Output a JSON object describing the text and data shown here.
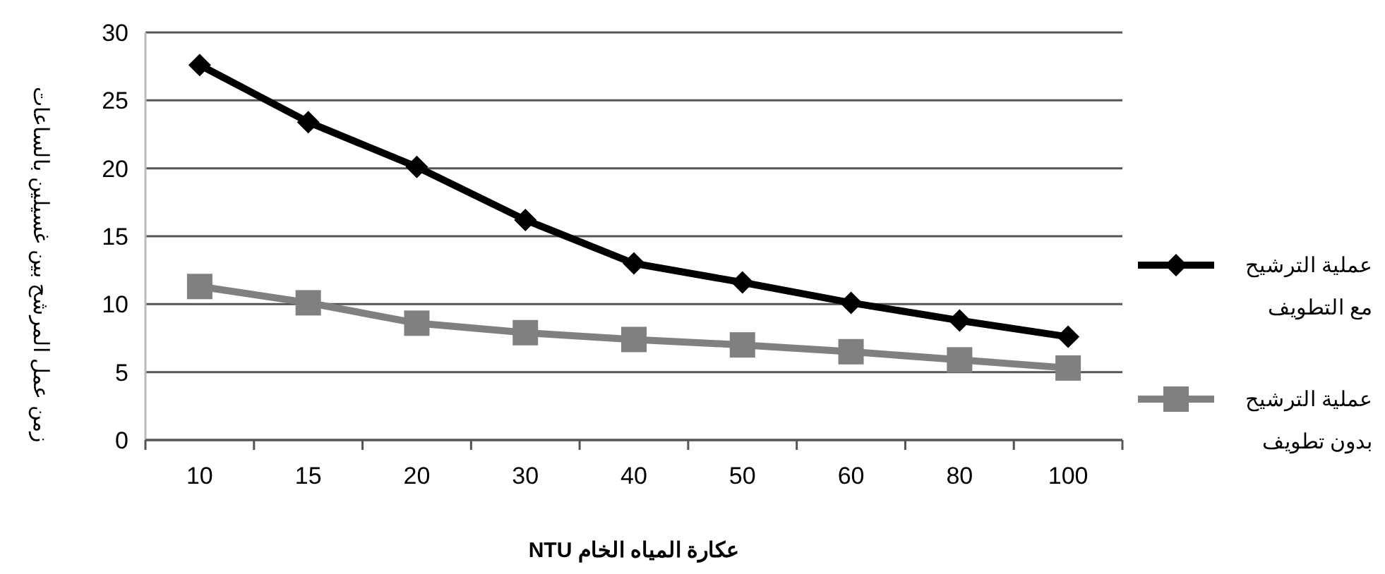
{
  "chart_data": {
    "type": "line",
    "xlabel": "عكارة المياه الخام NTU",
    "ylabel": "زمن عمل المرشح بين غسيلين بالساعات",
    "categories": [
      "10",
      "15",
      "20",
      "30",
      "40",
      "50",
      "60",
      "80",
      "100"
    ],
    "series": [
      {
        "name": "عملية الترشيح مع التطويف",
        "color": "#000000",
        "marker": "diamond",
        "values": [
          27.6,
          23.4,
          20.1,
          16.2,
          13.0,
          11.6,
          10.1,
          8.8,
          7.6
        ]
      },
      {
        "name": "عملية الترشيح بدون تطويف",
        "color": "#808080",
        "marker": "square",
        "values": [
          11.3,
          10.1,
          8.6,
          7.9,
          7.4,
          7.0,
          6.5,
          5.9,
          5.3
        ]
      }
    ],
    "ylim": [
      0,
      30
    ],
    "yticks": [
      0,
      5,
      10,
      15,
      20,
      25,
      30
    ],
    "grid": "y",
    "legend": "right"
  }
}
